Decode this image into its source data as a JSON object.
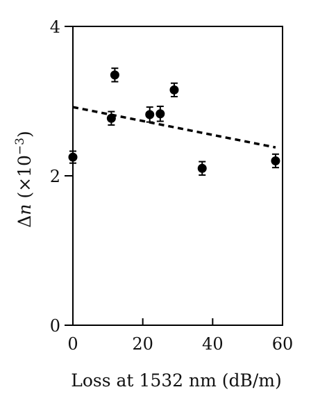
{
  "chart_data": {
    "type": "scatter",
    "title": "",
    "xlabel": "Loss at 1532 nm (dB/m)",
    "ylabel": {
      "prefix": "Δ",
      "symbol": "n",
      "unit_open": " (×10",
      "unit_exp": "−3",
      "unit_close": ")"
    },
    "xlim": [
      0,
      60
    ],
    "ylim": [
      0,
      4
    ],
    "xticks": [
      0,
      20,
      40,
      60
    ],
    "yticks": [
      0,
      2,
      4
    ],
    "xtick_labels": [
      "0",
      "20",
      "40",
      "60"
    ],
    "ytick_labels": [
      "0",
      "2",
      "4"
    ],
    "grid": false,
    "series": [
      {
        "marker": "filled-circle",
        "color": "#000000",
        "points": [
          {
            "x": 0,
            "y": 2.25,
            "err": 0.08
          },
          {
            "x": 11,
            "y": 2.77,
            "err": 0.09
          },
          {
            "x": 12,
            "y": 3.35,
            "err": 0.09
          },
          {
            "x": 22,
            "y": 2.82,
            "err": 0.1
          },
          {
            "x": 25,
            "y": 2.83,
            "err": 0.1
          },
          {
            "x": 29,
            "y": 3.15,
            "err": 0.09
          },
          {
            "x": 37,
            "y": 2.1,
            "err": 0.09
          },
          {
            "x": 58,
            "y": 2.2,
            "err": 0.09
          }
        ]
      }
    ],
    "trendline": {
      "style": "dashed",
      "color": "#000000",
      "x": [
        0,
        58
      ],
      "y": [
        2.92,
        2.38
      ]
    }
  }
}
